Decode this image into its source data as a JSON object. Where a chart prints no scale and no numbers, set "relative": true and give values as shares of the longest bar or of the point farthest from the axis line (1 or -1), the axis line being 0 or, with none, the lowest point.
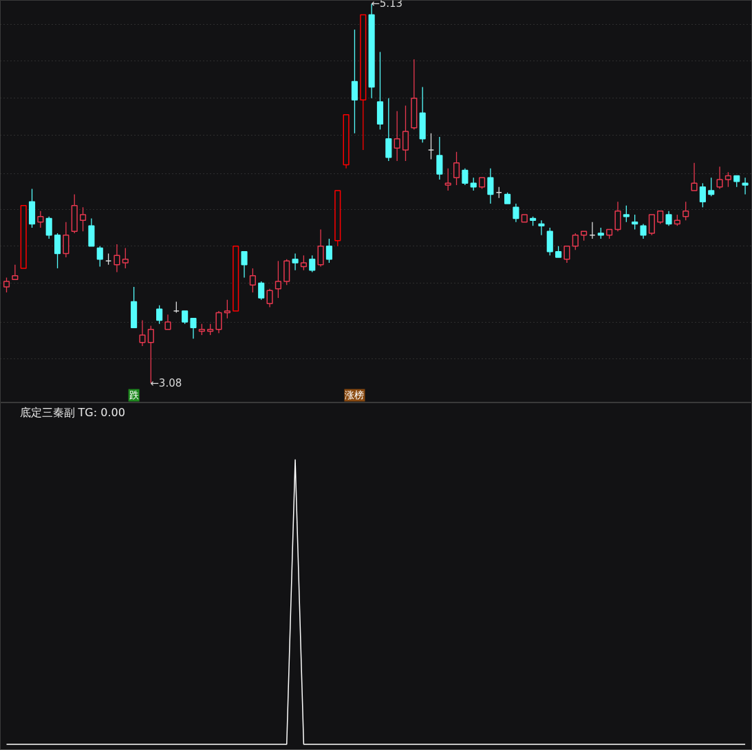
{
  "chart_data": [
    {
      "type": "candlestick",
      "categories": [
        null,
        null,
        null,
        null,
        null,
        null,
        null,
        null,
        null,
        null,
        null,
        null,
        null,
        null,
        null,
        "跌",
        null,
        null,
        null,
        null,
        null,
        null,
        null,
        null,
        null,
        null,
        null,
        null,
        null,
        null,
        null,
        null,
        null,
        null,
        null,
        null,
        null,
        null,
        null,
        null,
        null,
        "涨榜",
        null,
        null,
        null,
        null,
        null,
        null,
        null,
        null,
        null,
        null,
        null,
        null,
        null,
        null,
        null,
        null,
        null,
        null,
        null,
        null,
        null,
        null,
        null,
        null,
        null,
        null,
        null,
        null,
        null,
        null,
        null,
        null,
        null,
        null,
        null,
        null,
        null,
        null,
        null,
        null,
        null,
        null,
        null,
        null,
        null,
        null
      ],
      "ohlc": [
        [
          3.6,
          3.65,
          3.57,
          3.63
        ],
        [
          3.64,
          3.72,
          3.64,
          3.66
        ],
        [
          3.7,
          4.04,
          3.7,
          4.04
        ],
        [
          4.06,
          4.13,
          3.92,
          3.94
        ],
        [
          3.95,
          4.01,
          3.92,
          3.98
        ],
        [
          3.97,
          3.98,
          3.86,
          3.88
        ],
        [
          3.88,
          3.89,
          3.7,
          3.78
        ],
        [
          3.78,
          3.95,
          3.76,
          3.88
        ],
        [
          3.9,
          4.1,
          3.89,
          4.04
        ],
        [
          3.96,
          4.03,
          3.9,
          3.99
        ],
        [
          3.93,
          3.97,
          3.82,
          3.82
        ],
        [
          3.81,
          3.82,
          3.71,
          3.75
        ],
        [
          3.74,
          3.78,
          3.72,
          3.74
        ],
        [
          3.72,
          3.83,
          3.68,
          3.77
        ],
        [
          3.73,
          3.81,
          3.7,
          3.75
        ],
        [
          3.52,
          3.6,
          3.38,
          3.38
        ],
        [
          3.3,
          3.42,
          3.28,
          3.34
        ],
        [
          3.3,
          3.39,
          3.08,
          3.37
        ],
        [
          3.48,
          3.5,
          3.4,
          3.42
        ],
        [
          3.37,
          3.45,
          3.37,
          3.41
        ],
        [
          3.47,
          3.52,
          3.46,
          3.47
        ],
        [
          3.47,
          3.47,
          3.4,
          3.41
        ],
        [
          3.43,
          3.43,
          3.32,
          3.38
        ],
        [
          3.36,
          3.4,
          3.34,
          3.37
        ],
        [
          3.36,
          3.4,
          3.34,
          3.37
        ],
        [
          3.37,
          3.47,
          3.35,
          3.46
        ],
        [
          3.46,
          3.53,
          3.43,
          3.47
        ],
        [
          3.47,
          3.82,
          3.47,
          3.82
        ],
        [
          3.79,
          3.79,
          3.65,
          3.72
        ],
        [
          3.61,
          3.7,
          3.57,
          3.66
        ],
        [
          3.62,
          3.63,
          3.53,
          3.54
        ],
        [
          3.51,
          3.59,
          3.49,
          3.58
        ],
        [
          3.59,
          3.74,
          3.54,
          3.63
        ],
        [
          3.63,
          3.75,
          3.61,
          3.74
        ],
        [
          3.75,
          3.78,
          3.69,
          3.73
        ],
        [
          3.71,
          3.77,
          3.69,
          3.73
        ],
        [
          3.75,
          3.77,
          3.68,
          3.69
        ],
        [
          3.72,
          3.91,
          3.71,
          3.82
        ],
        [
          3.82,
          3.86,
          3.73,
          3.75
        ],
        [
          3.85,
          4.12,
          3.82,
          4.12
        ],
        [
          4.26,
          4.53,
          4.24,
          4.53
        ],
        [
          4.71,
          4.99,
          4.43,
          4.61
        ],
        [
          4.61,
          5.07,
          4.34,
          5.07
        ],
        [
          5.07,
          5.13,
          4.62,
          4.68
        ],
        [
          4.6,
          4.87,
          4.45,
          4.48
        ],
        [
          4.4,
          4.62,
          4.28,
          4.3
        ],
        [
          4.35,
          4.55,
          4.28,
          4.4
        ],
        [
          4.34,
          4.58,
          4.28,
          4.44
        ],
        [
          4.46,
          4.83,
          4.45,
          4.62
        ],
        [
          4.54,
          4.68,
          4.38,
          4.4
        ],
        [
          4.34,
          4.43,
          4.29,
          4.34
        ],
        [
          4.31,
          4.41,
          4.18,
          4.21
        ],
        [
          4.15,
          4.24,
          4.12,
          4.16
        ],
        [
          4.19,
          4.33,
          4.15,
          4.27
        ],
        [
          4.23,
          4.24,
          4.15,
          4.16
        ],
        [
          4.16,
          4.19,
          4.12,
          4.14
        ],
        [
          4.14,
          4.19,
          4.13,
          4.19
        ],
        [
          4.19,
          4.24,
          4.05,
          4.1
        ],
        [
          4.11,
          4.14,
          4.08,
          4.11
        ],
        [
          4.1,
          4.11,
          4.05,
          4.05
        ],
        [
          4.03,
          4.05,
          3.95,
          3.97
        ],
        [
          3.95,
          3.99,
          3.95,
          3.99
        ],
        [
          3.97,
          3.98,
          3.93,
          3.96
        ],
        [
          3.94,
          3.96,
          3.88,
          3.93
        ],
        [
          3.9,
          3.92,
          3.77,
          3.79
        ],
        [
          3.79,
          3.82,
          3.76,
          3.76
        ],
        [
          3.75,
          3.82,
          3.73,
          3.82
        ],
        [
          3.82,
          3.89,
          3.8,
          3.88
        ],
        [
          3.88,
          3.9,
          3.85,
          3.9
        ],
        [
          3.88,
          3.95,
          3.86,
          3.88
        ],
        [
          3.89,
          3.92,
          3.86,
          3.88
        ],
        [
          3.88,
          3.91,
          3.86,
          3.91
        ],
        [
          3.91,
          4.06,
          3.9,
          4.01
        ],
        [
          3.99,
          4.04,
          3.95,
          3.98
        ],
        [
          3.95,
          3.99,
          3.91,
          3.94
        ],
        [
          3.93,
          3.94,
          3.86,
          3.88
        ],
        [
          3.89,
          3.99,
          3.88,
          3.99
        ],
        [
          3.95,
          4.01,
          3.94,
          4.01
        ],
        [
          3.99,
          4.01,
          3.93,
          3.94
        ],
        [
          3.94,
          3.99,
          3.93,
          3.96
        ],
        [
          3.98,
          4.06,
          3.96,
          4.01
        ],
        [
          4.12,
          4.27,
          4.12,
          4.16
        ],
        [
          4.14,
          4.16,
          4.03,
          4.06
        ],
        [
          4.12,
          4.19,
          4.09,
          4.1
        ],
        [
          4.14,
          4.25,
          4.13,
          4.18
        ],
        [
          4.18,
          4.22,
          4.14,
          4.2
        ],
        [
          4.2,
          4.2,
          4.14,
          4.17
        ],
        [
          4.16,
          4.19,
          4.1,
          4.15
        ]
      ],
      "colors": [
        "#e8384f",
        "#e8384f",
        "#ff0000",
        "#54fcfc",
        "#e8384f",
        "#54fcfc",
        "#54fcfc",
        "#e8384f",
        "#e8384f",
        "#e8384f",
        "#54fcfc",
        "#54fcfc",
        "#dcdcdc",
        "#e8384f",
        "#e8384f",
        "#54fcfc",
        "#e8384f",
        "#e8384f",
        "#54fcfc",
        "#e8384f",
        "#dcdcdc",
        "#54fcfc",
        "#54fcfc",
        "#e8384f",
        "#e8384f",
        "#e8384f",
        "#e8384f",
        "#ff0000",
        "#54fcfc",
        "#e8384f",
        "#54fcfc",
        "#e8384f",
        "#e8384f",
        "#e8384f",
        "#54fcfc",
        "#e8384f",
        "#54fcfc",
        "#e8384f",
        "#54fcfc",
        "#ff0000",
        "#ff0000",
        "#54fcfc",
        "#ff0000",
        "#54fcfc",
        "#54fcfc",
        "#54fcfc",
        "#e8384f",
        "#e8384f",
        "#e8384f",
        "#54fcfc",
        "#dcdcdc",
        "#54fcfc",
        "#e8384f",
        "#e8384f",
        "#54fcfc",
        "#54fcfc",
        "#e8384f",
        "#54fcfc",
        "#dcdcdc",
        "#54fcfc",
        "#54fcfc",
        "#e8384f",
        "#54fcfc",
        "#54fcfc",
        "#54fcfc",
        "#54fcfc",
        "#e8384f",
        "#e8384f",
        "#e8384f",
        "#dcdcdc",
        "#54fcfc",
        "#e8384f",
        "#e8384f",
        "#54fcfc",
        "#54fcfc",
        "#54fcfc",
        "#e8384f",
        "#e8384f",
        "#54fcfc",
        "#e8384f",
        "#e8384f",
        "#e8384f",
        "#54fcfc",
        "#54fcfc",
        "#e8384f",
        "#e8384f",
        "#54fcfc",
        "#54fcfc"
      ],
      "yticks": [
        {
          "value": 5.02,
          "label": null
        },
        {
          "value": 4.82,
          "label": null
        },
        {
          "value": 4.62,
          "label": null
        },
        {
          "value": 4.42,
          "label": null
        },
        {
          "value": 4.21,
          "label": null
        },
        {
          "value": 4.02,
          "label": null
        },
        {
          "value": 3.82,
          "label": null
        },
        {
          "value": 3.62,
          "label": null
        },
        {
          "value": 3.41,
          "label": null
        },
        {
          "value": 3.21,
          "label": null
        }
      ],
      "grid": "y",
      "annotations": [
        "←5.13",
        "←3.08"
      ]
    },
    {
      "type": "line",
      "title": "底定三秦副 TG: 0.00",
      "relative": true,
      "color": "#ffffff",
      "categories": [
        null,
        null,
        null,
        null,
        null,
        null,
        null,
        null,
        null,
        null,
        null,
        null,
        null,
        null,
        null,
        null,
        null,
        null,
        null,
        null,
        null,
        null,
        null,
        null,
        null,
        null,
        null,
        null,
        null,
        null,
        null,
        null,
        null,
        null,
        null,
        null,
        null,
        null,
        null,
        null,
        null,
        null,
        null,
        null,
        null,
        null,
        null,
        null,
        null,
        null,
        null,
        null,
        null,
        null,
        null,
        null,
        null,
        null,
        null,
        null,
        null,
        null,
        null,
        null,
        null,
        null,
        null,
        null,
        null,
        null,
        null,
        null,
        null,
        null,
        null,
        null,
        null,
        null,
        null,
        null,
        null,
        null,
        null,
        null,
        null,
        null,
        null,
        null
      ],
      "values": [
        0,
        0,
        0,
        0,
        0,
        0,
        0,
        0,
        0,
        0,
        0,
        0,
        0,
        0,
        0,
        0,
        0,
        0,
        0,
        0,
        0,
        0,
        0,
        0,
        0,
        0,
        0,
        0,
        0,
        0,
        0,
        0,
        0,
        0,
        1,
        0,
        0,
        0,
        0,
        0,
        0,
        0,
        0,
        0,
        0,
        0,
        0,
        0,
        0,
        0,
        0,
        0,
        0,
        0,
        0,
        0,
        0,
        0,
        0,
        0,
        0,
        0,
        0,
        0,
        0,
        0,
        0,
        0,
        0,
        0,
        0,
        0,
        0,
        0,
        0,
        0,
        0,
        0,
        0,
        0,
        0,
        0,
        0,
        0,
        0,
        0,
        0,
        0
      ]
    }
  ]
}
